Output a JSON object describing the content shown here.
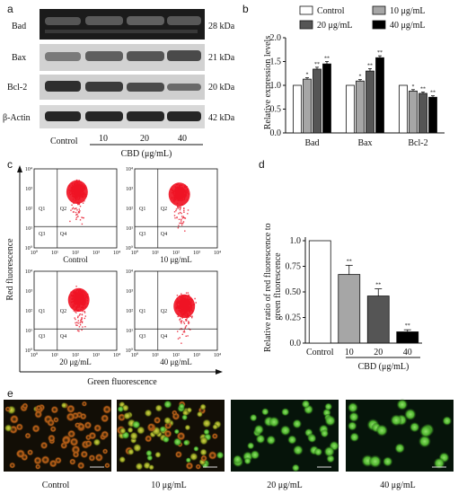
{
  "panel_a": {
    "label": "a",
    "bands": [
      {
        "name": "Bad",
        "kda": "28 kDa"
      },
      {
        "name": "Bax",
        "kda": "21 kDa"
      },
      {
        "name": "Bcl-2",
        "kda": "20 kDa"
      },
      {
        "name": "β-Actin",
        "kda": "42 kDa"
      }
    ],
    "lanes": [
      "Control",
      "10",
      "20",
      "40"
    ],
    "treatment_label": "CBD (μg/mL)"
  },
  "panel_b": {
    "label": "b",
    "legend": [
      "Control",
      "10 μg/mL",
      "20 μg/mL",
      "40 μg/mL"
    ],
    "colors": [
      "#ffffff",
      "#a6a6a6",
      "#555555",
      "#000000"
    ]
  },
  "panel_c": {
    "label": "c",
    "plots": [
      {
        "caption": "Control",
        "quadrants": [
          "Q1",
          "Q2",
          "Q3",
          "Q4"
        ]
      },
      {
        "caption": "10 μg/mL",
        "quadrants": [
          "Q1",
          "Q2",
          "Q3",
          "Q4"
        ]
      },
      {
        "caption": "20 μg/mL",
        "quadrants": [
          "Q1",
          "Q2",
          "Q3",
          "Q4"
        ]
      },
      {
        "caption": "40 μg/mL",
        "quadrants": [
          "Q1",
          "Q2",
          "Q3",
          "Q4"
        ]
      }
    ],
    "axis_ticks": [
      "10⁰",
      "10¹",
      "10²",
      "10³",
      "10⁴"
    ],
    "xlabel": "Green fluorescence",
    "ylabel": "Red fluorescence"
  },
  "panel_d": {
    "label": "d",
    "treatment_label": "CBD (μg/mL)"
  },
  "panel_e": {
    "label": "e",
    "captions": [
      "Control",
      "10 μg/mL",
      "20 μg/mL",
      "40 μg/mL"
    ]
  },
  "chart_data": [
    {
      "type": "bar",
      "title": "",
      "xlabel": "",
      "ylabel": "Relative expression levels",
      "ylim": [
        0,
        2.0
      ],
      "yticks": [
        "0.0",
        "0.5",
        "1.0",
        "1.5",
        "2.0"
      ],
      "grid": false,
      "legend_position": "top",
      "categories": [
        "Bad",
        "Bax",
        "Bcl-2"
      ],
      "series": [
        {
          "name": "Control",
          "values": [
            1.0,
            1.0,
            1.0
          ],
          "errors": [
            0,
            0,
            0
          ],
          "stars": [
            "",
            "",
            ""
          ]
        },
        {
          "name": "10 μg/mL",
          "values": [
            1.13,
            1.09,
            0.88
          ],
          "errors": [
            0.03,
            0.03,
            0.03
          ],
          "stars": [
            "*",
            "*",
            "*"
          ]
        },
        {
          "name": "20 μg/mL",
          "values": [
            1.34,
            1.3,
            0.83
          ],
          "errors": [
            0.04,
            0.05,
            0.03
          ],
          "stars": [
            "**",
            "**",
            "**"
          ]
        },
        {
          "name": "40 μg/mL",
          "values": [
            1.45,
            1.58,
            0.75
          ],
          "errors": [
            0.05,
            0.04,
            0.03
          ],
          "stars": [
            "**",
            "**",
            "**"
          ]
        }
      ]
    },
    {
      "type": "bar",
      "title": "",
      "xlabel": "",
      "ylabel": "Relative ratio of red fluorescence to green fluorescence",
      "ylim": [
        0,
        1.0
      ],
      "yticks": [
        "0.0",
        "0.25",
        "0.50",
        "0.75",
        "1.0"
      ],
      "grid": false,
      "categories": [
        "Control",
        "10",
        "20",
        "40"
      ],
      "values": [
        1.0,
        0.67,
        0.46,
        0.11
      ],
      "errors": [
        0,
        0.09,
        0.07,
        0.02
      ],
      "stars": [
        "",
        "**",
        "**",
        "**"
      ],
      "colors": [
        "#ffffff",
        "#a6a6a6",
        "#555555",
        "#000000"
      ]
    }
  ]
}
